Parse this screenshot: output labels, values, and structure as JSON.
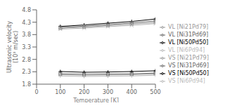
{
  "chart_data": {
    "type": "line",
    "x": [
      100,
      200,
      300,
      400,
      500
    ],
    "xlim": [
      0,
      500
    ],
    "xticks": [
      0,
      100,
      200,
      300,
      400,
      500
    ],
    "ylim": [
      1.8,
      4.8
    ],
    "yticks": [
      1.8,
      2.3,
      2.8,
      3.3,
      3.8,
      4.3,
      4.8
    ],
    "xlabel": "Temperature [K]",
    "ylabel": "Ultrasonic velocity\n(10³ m/sec)",
    "grid": false,
    "legend": "right",
    "series": [
      {
        "name": "VL [Ni50Pd50]",
        "color": "#000000",
        "marker": "plus",
        "values": [
          4.13,
          4.19,
          4.26,
          4.33,
          4.43
        ]
      },
      {
        "name": "VL [Ni31Pd69]",
        "color": "#666666",
        "marker": "square",
        "values": [
          4.09,
          4.14,
          4.2,
          4.27,
          4.35
        ]
      },
      {
        "name": "VL [Ni21Pd79]",
        "color": "#999999",
        "marker": "triangle",
        "values": [
          4.05,
          4.1,
          4.16,
          4.22,
          4.29
        ]
      },
      {
        "name": "VL [Ni6Pd94]",
        "color": "#bbbbbb",
        "marker": "x",
        "values": [
          4.02,
          4.06,
          4.12,
          4.17,
          4.24
        ]
      },
      {
        "name": "VS [Ni50Pd50]",
        "color": "#000000",
        "marker": "plus",
        "values": [
          2.31,
          2.28,
          2.29,
          2.31,
          2.34
        ]
      },
      {
        "name": "VS [Ni31Pd69]",
        "color": "#666666",
        "marker": "square",
        "values": [
          2.22,
          2.2,
          2.21,
          2.22,
          2.25
        ]
      },
      {
        "name": "VS [Ni21Pd79]",
        "color": "#999999",
        "marker": "triangle",
        "values": [
          2.18,
          2.16,
          2.17,
          2.18,
          2.21
        ]
      },
      {
        "name": "VS [Ni6Pd94]",
        "color": "#bbbbbb",
        "marker": "plus",
        "values": [
          2.13,
          2.11,
          2.12,
          2.13,
          2.16
        ]
      }
    ]
  }
}
